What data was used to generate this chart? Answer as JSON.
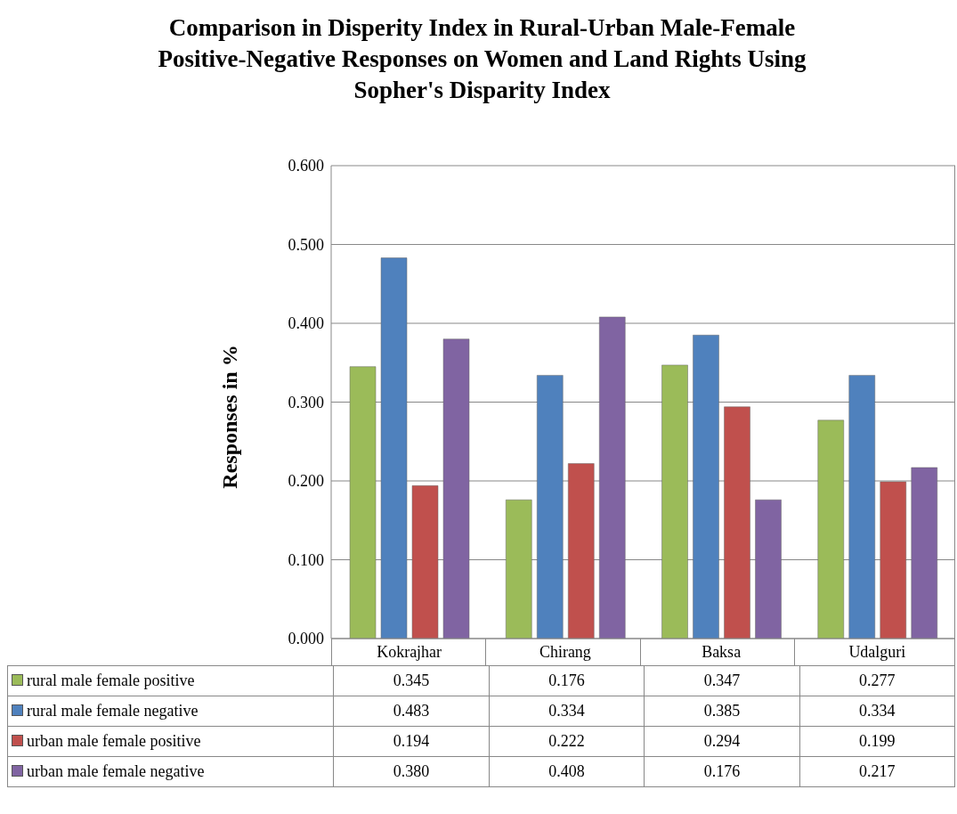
{
  "chart_data": {
    "type": "bar",
    "title": "Comparison in Disperity Index in Rural-Urban Male-Female Positive-Negative Responses on Women and Land Rights Using Sopher's Disparity Index",
    "ylabel": "Responses in %",
    "categories": [
      "Kokrajhar",
      "Chirang",
      "Baksa",
      "Udalguri"
    ],
    "series": [
      {
        "name": "rural male female positive",
        "color": "#9bbb59",
        "values": [
          0.345,
          0.176,
          0.347,
          0.277
        ],
        "value_labels": [
          "0.345",
          "0.176",
          "0.347",
          "0.277"
        ]
      },
      {
        "name": "rural male female negative",
        "color": "#4f81bd",
        "values": [
          0.483,
          0.334,
          0.385,
          0.334
        ],
        "value_labels": [
          "0.483",
          "0.334",
          "0.385",
          "0.334"
        ]
      },
      {
        "name": "urban male female positive",
        "color": "#c0504d",
        "values": [
          0.194,
          0.222,
          0.294,
          0.199
        ],
        "value_labels": [
          "0.194",
          "0.222",
          "0.294",
          "0.199"
        ]
      },
      {
        "name": "urban male female negative",
        "color": "#8064a2",
        "values": [
          0.38,
          0.408,
          0.176,
          0.217
        ],
        "value_labels": [
          "0.380",
          "0.408",
          "0.176",
          "0.217"
        ]
      }
    ],
    "ylim": [
      0,
      0.6
    ],
    "yticks": [
      {
        "value": 0,
        "label": "0.000"
      },
      {
        "value": 0.1,
        "label": "0.100"
      },
      {
        "value": 0.2,
        "label": "0.200"
      },
      {
        "value": 0.3,
        "label": "0.300"
      },
      {
        "value": 0.4,
        "label": "0.400"
      },
      {
        "value": 0.5,
        "label": "0.500"
      },
      {
        "value": 0.6,
        "label": "0.600"
      }
    ],
    "grid": "y",
    "legend": "bottom left"
  }
}
